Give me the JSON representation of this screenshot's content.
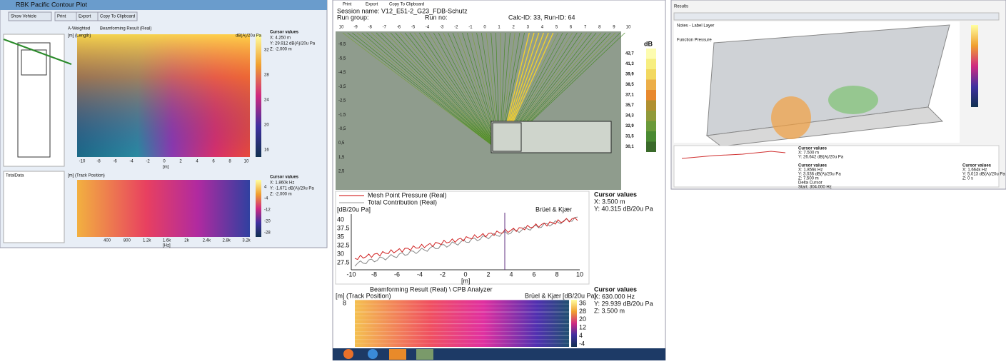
{
  "panel1": {
    "title": "RBK Pacific Contour Plot",
    "toolbar": [
      "Show Vehicle",
      "Print",
      "Export",
      "Copy To Clipboard"
    ],
    "contour": {
      "checkbox": "A-Weighted",
      "caption": "Beamforming Result (Real)",
      "y_unit": "[m] (Length)",
      "unit": "dB(A)/20u Pa",
      "xticks": [
        "-10",
        "-8",
        "-6",
        "-4",
        "-2",
        "0",
        "2",
        "4",
        "6",
        "8",
        "10"
      ],
      "x_unit": "[m]",
      "colorbar": [
        "32",
        "28",
        "24",
        "20",
        "16"
      ],
      "cursor": {
        "title": "Cursor values",
        "lines": [
          "X: 4.250 m",
          "Y: 29.912 dB(A)/20u Pa",
          "Z: -2.000 m"
        ]
      }
    },
    "spectrum": {
      "caption": "[m] (Track Position)",
      "xticks": [
        "400",
        "800",
        "1.2k",
        "1.6k",
        "2k",
        "2.4k",
        "2.8k",
        "3.2k"
      ],
      "x_unit": "[Hz]",
      "colorbar": [
        "4",
        "-4",
        "-12",
        "-20",
        "-28"
      ],
      "cursor": {
        "title": "Cursor values",
        "lines": [
          "X: 1.860k Hz",
          "Y: -1.671 dB(A)/20u Pa",
          "Z: -2.000 m"
        ]
      }
    },
    "data_panel": {
      "title": "TotalData"
    }
  },
  "panel2": {
    "toolbar": [
      "Print",
      "Export",
      "Copy To Clipboard"
    ],
    "session": {
      "name": "Session name: V12_E51-2_G23_FDB-Schutz",
      "run_group": "Run group:",
      "run_no": "Run no:",
      "ids": "Calc-ID: 33,  Run-ID: 64"
    },
    "map": {
      "xticks": [
        "10",
        "-9",
        "-8",
        "-7",
        "-6",
        "-5",
        "-4",
        "-3",
        "-2",
        "-1",
        "0",
        "1",
        "2",
        "3",
        "4",
        "5",
        "6",
        "7",
        "8",
        "9",
        "10"
      ],
      "yticks": [
        "-6,5",
        "-5,5",
        "-4,5",
        "-3,5",
        "-2,5",
        "-1,5",
        "-0,5",
        "0,5",
        "1,5",
        "2,5"
      ],
      "legend_title": "dB",
      "legend": [
        "42,7",
        "41,3",
        "39,9",
        "38,5",
        "37,1",
        "35,7",
        "34,3",
        "32,9",
        "31,5",
        "30,1"
      ]
    },
    "line_chart": {
      "legend": [
        "Mesh Point Pressure (Real)",
        "Total Contribution (Real)"
      ],
      "y_unit": "[dB/20u Pa]",
      "brand": "Brüel & Kjær",
      "yticks": [
        "40",
        "37.5",
        "35",
        "32.5",
        "30",
        "27.5"
      ],
      "xticks": [
        "-10",
        "-8",
        "-6",
        "-4",
        "-2",
        "0",
        "2",
        "4",
        "6",
        "8",
        "10"
      ],
      "x_unit": "[m]",
      "cursor": {
        "title": "Cursor values",
        "lines": [
          "X: 3.500 m",
          "Y: 40.315 dB/20u Pa"
        ]
      }
    },
    "cpb": {
      "caption": "Beamforming Result (Real) \\ CPB Analyzer",
      "y_unit": "[m] (Track Position)",
      "unit": "[dB/20u Pa]",
      "brand": "Brüel & Kjær",
      "ytick": "8",
      "colorbar": [
        "36",
        "28",
        "20",
        "12",
        "4",
        "-4"
      ],
      "cursor": {
        "title": "Cursor values",
        "lines": [
          "X: 630.000 Hz",
          "Y: 29.939 dB/20u Pa",
          "Z: 3.500 m"
        ]
      }
    }
  },
  "panel3": {
    "title": "Results",
    "notes": "Notes - Label Layer",
    "function": "Function Pressure",
    "cursors": [
      {
        "title": "Cursor values",
        "lines": [
          "X: 7.500 m",
          "Y: 26.642 dB(A)/20u Pa"
        ]
      },
      {
        "title": "Cursor values",
        "lines": [
          "X: 1.856k Hz",
          "Y: 3.036 dB(A)/20u Pa",
          "Z: 7.500 m",
          "Delta Cursor",
          "Start: 304.000 Hz"
        ]
      },
      {
        "title": "Cursor values",
        "lines": [
          "X: 1.664k Hz",
          "Y: 5.013 dB(A)/20u Pa",
          "Z: 0 s"
        ]
      }
    ]
  }
}
